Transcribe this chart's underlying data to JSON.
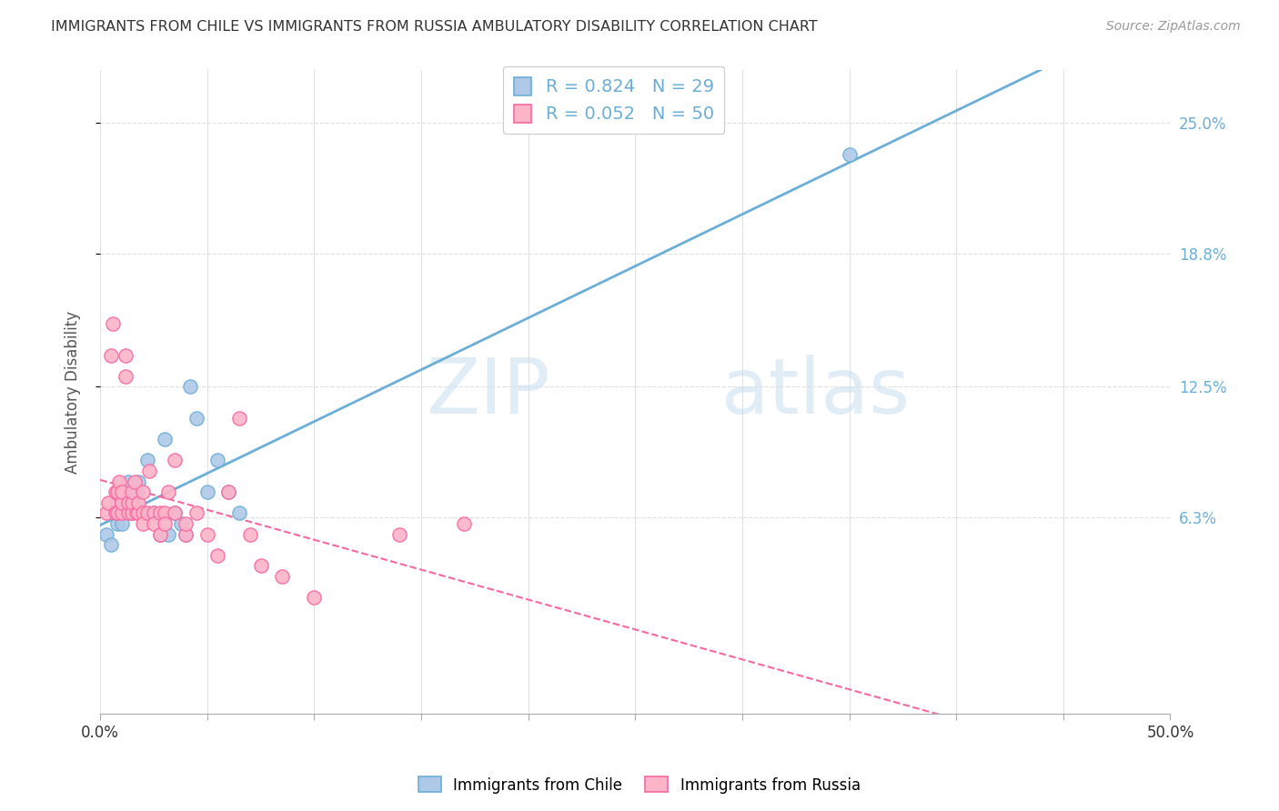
{
  "title": "IMMIGRANTS FROM CHILE VS IMMIGRANTS FROM RUSSIA AMBULATORY DISABILITY CORRELATION CHART",
  "source": "Source: ZipAtlas.com",
  "ylabel": "Ambulatory Disability",
  "ytick_labels": [
    "6.3%",
    "12.5%",
    "18.8%",
    "25.0%"
  ],
  "ytick_values": [
    0.063,
    0.125,
    0.188,
    0.25
  ],
  "xlim": [
    0.0,
    0.5
  ],
  "ylim": [
    -0.03,
    0.275
  ],
  "chile_color": "#6baed6",
  "chile_fill": "#aec9e8",
  "russia_color": "#f768a1",
  "russia_fill": "#fbb4c8",
  "legend_chile_label": "R = 0.824   N = 29",
  "legend_russia_label": "R = 0.052   N = 50",
  "legend_chile_label2": "Immigrants from Chile",
  "legend_russia_label2": "Immigrants from Russia",
  "chile_scatter_x": [
    0.003,
    0.005,
    0.007,
    0.008,
    0.008,
    0.01,
    0.01,
    0.012,
    0.013,
    0.015,
    0.015,
    0.017,
    0.018,
    0.02,
    0.022,
    0.025,
    0.028,
    0.03,
    0.032,
    0.035,
    0.038,
    0.04,
    0.042,
    0.045,
    0.05,
    0.055,
    0.06,
    0.065,
    0.35
  ],
  "chile_scatter_y": [
    0.055,
    0.05,
    0.065,
    0.06,
    0.07,
    0.065,
    0.06,
    0.07,
    0.08,
    0.065,
    0.07,
    0.075,
    0.08,
    0.065,
    0.09,
    0.065,
    0.055,
    0.1,
    0.055,
    0.065,
    0.06,
    0.055,
    0.125,
    0.11,
    0.075,
    0.09,
    0.075,
    0.065,
    0.235
  ],
  "russia_scatter_x": [
    0.003,
    0.004,
    0.005,
    0.006,
    0.007,
    0.007,
    0.008,
    0.008,
    0.009,
    0.01,
    0.01,
    0.01,
    0.012,
    0.012,
    0.013,
    0.013,
    0.015,
    0.015,
    0.015,
    0.016,
    0.017,
    0.018,
    0.018,
    0.02,
    0.02,
    0.02,
    0.022,
    0.023,
    0.025,
    0.025,
    0.028,
    0.028,
    0.03,
    0.03,
    0.032,
    0.035,
    0.035,
    0.04,
    0.04,
    0.045,
    0.05,
    0.055,
    0.06,
    0.065,
    0.07,
    0.075,
    0.085,
    0.1,
    0.14,
    0.17
  ],
  "russia_scatter_y": [
    0.065,
    0.07,
    0.14,
    0.155,
    0.075,
    0.065,
    0.075,
    0.065,
    0.08,
    0.065,
    0.07,
    0.075,
    0.14,
    0.13,
    0.065,
    0.07,
    0.065,
    0.07,
    0.075,
    0.08,
    0.065,
    0.065,
    0.07,
    0.065,
    0.06,
    0.075,
    0.065,
    0.085,
    0.065,
    0.06,
    0.055,
    0.065,
    0.065,
    0.06,
    0.075,
    0.09,
    0.065,
    0.055,
    0.06,
    0.065,
    0.055,
    0.045,
    0.075,
    0.11,
    0.055,
    0.04,
    0.035,
    0.025,
    0.055,
    0.06
  ],
  "watermark_zip": "ZIP",
  "watermark_atlas": "atlas",
  "background_color": "#ffffff",
  "grid_color": "#e0e0e0",
  "xtick_positions": [
    0.0,
    0.05,
    0.1,
    0.15,
    0.2,
    0.25,
    0.3,
    0.35,
    0.4,
    0.45,
    0.5
  ]
}
